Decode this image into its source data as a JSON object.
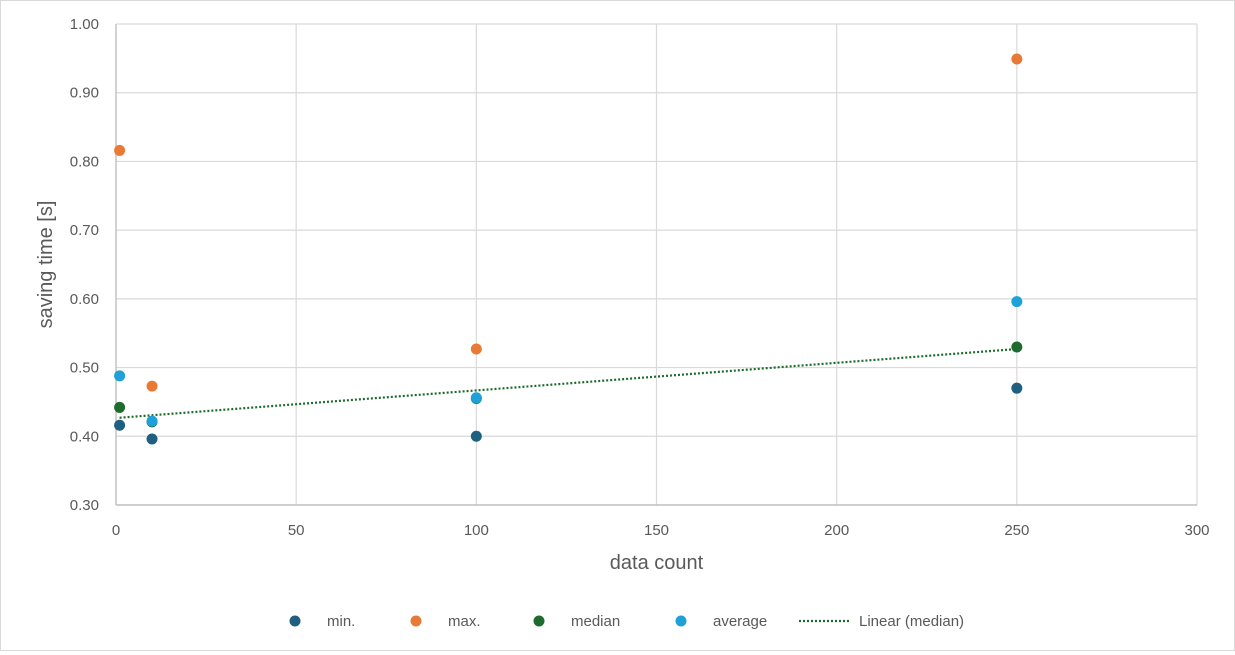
{
  "chart_data": {
    "type": "scatter",
    "xlabel": "data count",
    "ylabel": "saving time [s]",
    "xlim": [
      0,
      300
    ],
    "ylim": [
      0.3,
      1.0
    ],
    "x_ticks": [
      "0",
      "50",
      "100",
      "150",
      "200",
      "250",
      "300"
    ],
    "y_ticks": [
      "0.30",
      "0.40",
      "0.50",
      "0.60",
      "0.70",
      "0.80",
      "0.90",
      "1.00"
    ],
    "grid": true,
    "legend_position": "bottom",
    "series": [
      {
        "name": "min.",
        "color": "#1f5f82",
        "points": [
          [
            1,
            0.416
          ],
          [
            10,
            0.396
          ],
          [
            100,
            0.4
          ],
          [
            250,
            0.47
          ]
        ]
      },
      {
        "name": "max.",
        "color": "#e97a35",
        "points": [
          [
            1,
            0.816
          ],
          [
            10,
            0.473
          ],
          [
            100,
            0.527
          ],
          [
            250,
            0.949
          ]
        ]
      },
      {
        "name": "median",
        "color": "#1e6b2e",
        "points": [
          [
            1,
            0.442
          ],
          [
            10,
            0.421
          ],
          [
            100,
            0.455
          ],
          [
            250,
            0.53
          ]
        ]
      },
      {
        "name": "average",
        "color": "#1ea0d8",
        "points": [
          [
            1,
            0.488
          ],
          [
            10,
            0.422
          ],
          [
            100,
            0.456
          ],
          [
            250,
            0.596
          ]
        ]
      }
    ],
    "trendline": {
      "name": "Linear (median)",
      "color": "#1e6b2e",
      "style": "dotted",
      "x_from": 1,
      "x_to": 250,
      "y_from": 0.427,
      "y_to": 0.527
    }
  }
}
